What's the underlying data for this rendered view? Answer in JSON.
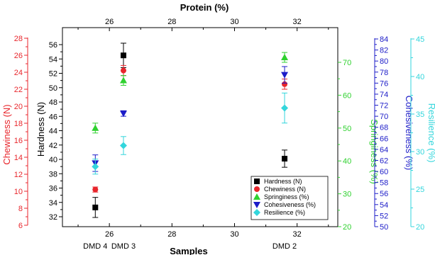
{
  "chart_data": {
    "type": "scatter",
    "title": "",
    "top_axis": {
      "label": "Protein (%)",
      "range": [
        24.5,
        33.3
      ],
      "ticks": [
        26,
        28,
        30,
        32
      ]
    },
    "bottom_axis": {
      "label": "Samples",
      "range": [
        24.5,
        33.3
      ],
      "ticks": [
        26,
        28,
        30,
        32
      ],
      "sample_labels": [
        {
          "name": "DMD 4",
          "x": 25.55
        },
        {
          "name": "DMD 3",
          "x": 26.45
        },
        {
          "name": "DMD 2",
          "x": 31.6
        }
      ]
    },
    "y_axes": [
      {
        "id": "chew",
        "label": "Chewiness (N)",
        "color": "#e8262c",
        "side": "left",
        "range": [
          6,
          28
        ],
        "ticks": [
          6,
          8,
          10,
          12,
          14,
          16,
          18,
          20,
          22,
          24,
          26,
          28
        ]
      },
      {
        "id": "hard",
        "label": "Hardness (N)",
        "color": "#000000",
        "side": "left",
        "range": [
          30.8,
          57.3
        ],
        "ticks": [
          32,
          34,
          36,
          38,
          40,
          42,
          44,
          46,
          48,
          50,
          52,
          54,
          56
        ]
      },
      {
        "id": "spring",
        "label": "Springiness (%)",
        "color": "#2fd12f",
        "side": "right",
        "range": [
          20,
          77
        ],
        "ticks": [
          20,
          30,
          40,
          50,
          60,
          70
        ]
      },
      {
        "id": "cohes",
        "label": "Cohesiveness (%)",
        "color": "#1c1cc8",
        "side": "right",
        "range": [
          50,
          84
        ],
        "ticks": [
          50,
          52,
          54,
          56,
          58,
          60,
          62,
          64,
          66,
          68,
          70,
          72,
          74,
          76,
          78,
          80,
          82,
          84
        ]
      },
      {
        "id": "resil",
        "label": "Resilience (%)",
        "color": "#33d6dc",
        "side": "right",
        "range": [
          20,
          45
        ],
        "ticks": [
          20,
          25,
          30,
          35,
          40,
          45
        ]
      }
    ],
    "series": [
      {
        "name": "Hardness (N)",
        "axis": "hard",
        "marker": "square",
        "color": "#000000",
        "points": [
          {
            "x": 25.55,
            "y": 33.3,
            "err": 1.4
          },
          {
            "x": 26.45,
            "y": 54.5,
            "err": 1.7
          },
          {
            "x": 31.6,
            "y": 40.1,
            "err": 1.2
          }
        ]
      },
      {
        "name": "Chewiness (N)",
        "axis": "chew",
        "marker": "circle",
        "color": "#e8262c",
        "points": [
          {
            "x": 25.55,
            "y": 10.2,
            "err": 0.3
          },
          {
            "x": 26.45,
            "y": 24.2,
            "err": 0.6
          },
          {
            "x": 31.6,
            "y": 22.6,
            "err": 0.6
          }
        ]
      },
      {
        "name": "Springiness (%)",
        "axis": "spring",
        "marker": "triangle-up",
        "color": "#2fd12f",
        "points": [
          {
            "x": 25.55,
            "y": 50.0,
            "err": 1.5
          },
          {
            "x": 26.45,
            "y": 64.5,
            "err": 1.5
          },
          {
            "x": 31.6,
            "y": 71.5,
            "err": 1.5
          }
        ]
      },
      {
        "name": "Cohesiveness (%)",
        "axis": "cohes",
        "marker": "triangle-down",
        "color": "#1c1cc8",
        "points": [
          {
            "x": 25.55,
            "y": 61.5,
            "err": 1.5
          },
          {
            "x": 26.45,
            "y": 70.5,
            "err": 0.5
          },
          {
            "x": 31.6,
            "y": 77.5,
            "err": 1.5
          }
        ]
      },
      {
        "name": "Resilience (%)",
        "axis": "resil",
        "marker": "diamond",
        "color": "#33d6dc",
        "points": [
          {
            "x": 25.55,
            "y": 28.0,
            "err": 1.0
          },
          {
            "x": 26.45,
            "y": 30.8,
            "err": 1.2
          },
          {
            "x": 31.6,
            "y": 35.8,
            "err": 2.0
          }
        ]
      }
    ],
    "legend_position": "bottom-right",
    "grid": false
  }
}
